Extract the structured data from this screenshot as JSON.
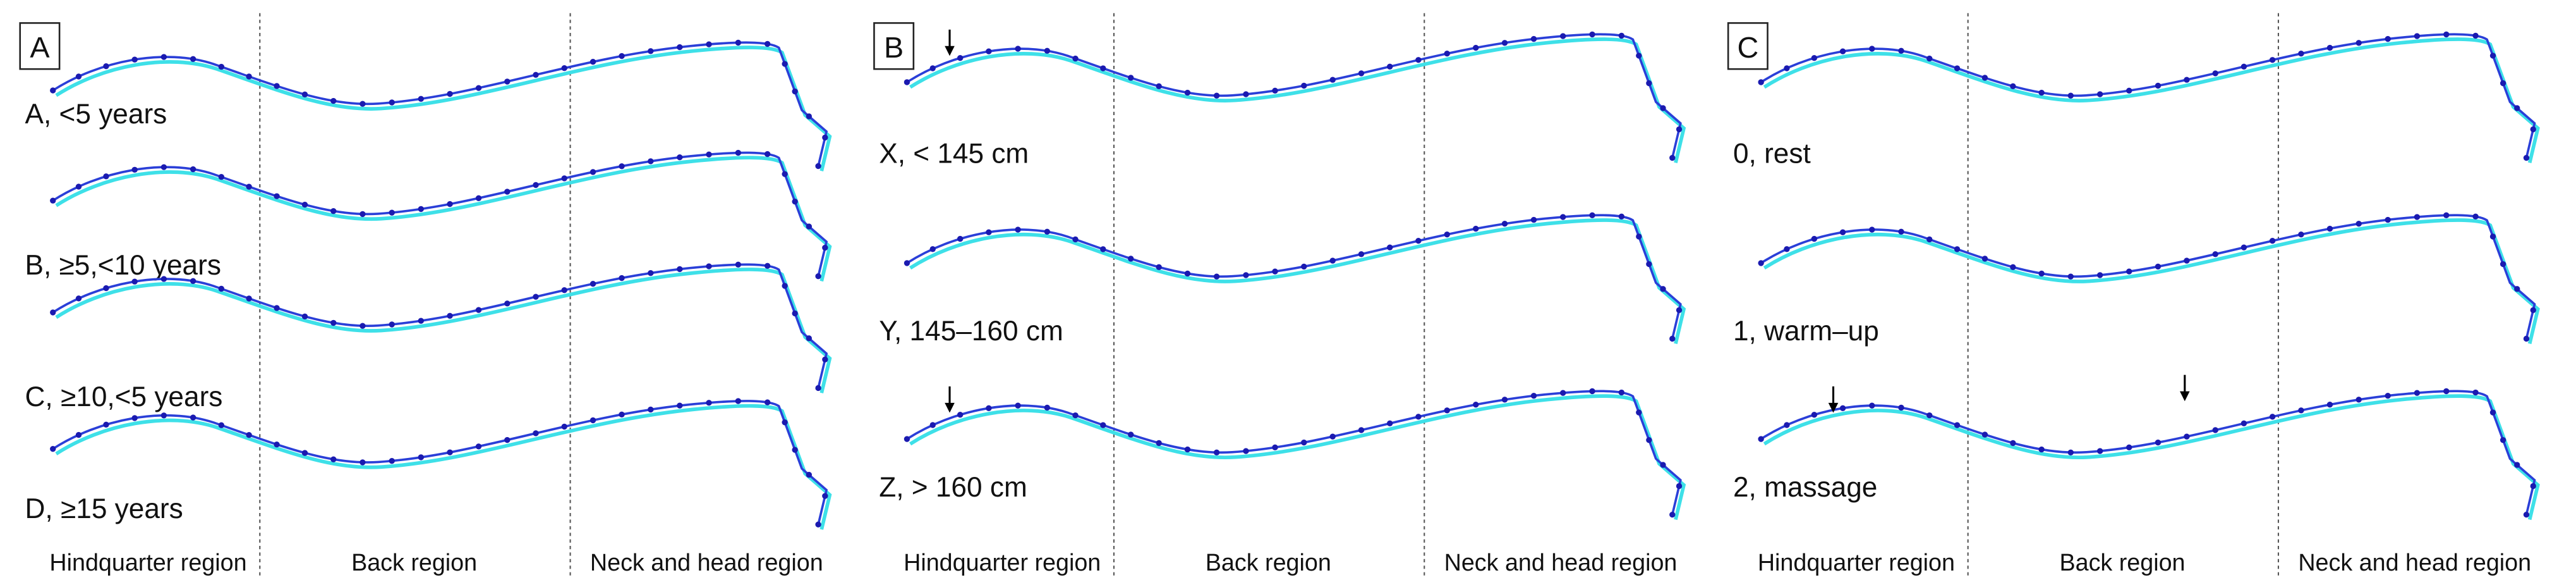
{
  "panels": [
    {
      "letter": "A",
      "rows": [
        "A, <5 years",
        "B, ≥5,<10 years",
        "C, ≥10,<5 years",
        "D, ≥15 years"
      ],
      "regions": [
        "Hindquarter region",
        "Back region",
        "Neck and head region"
      ]
    },
    {
      "letter": "B",
      "rows": [
        "X, < 145 cm",
        "Y, 145–160 cm",
        "Z, > 160 cm"
      ],
      "regions": [
        "Hindquarter region",
        "Back region",
        "Neck and head region"
      ]
    },
    {
      "letter": "C",
      "rows": [
        "0, rest",
        "1, warm–up",
        "2, massage"
      ],
      "regions": [
        "Hindquarter region",
        "Back region",
        "Neck and head region"
      ]
    }
  ]
}
